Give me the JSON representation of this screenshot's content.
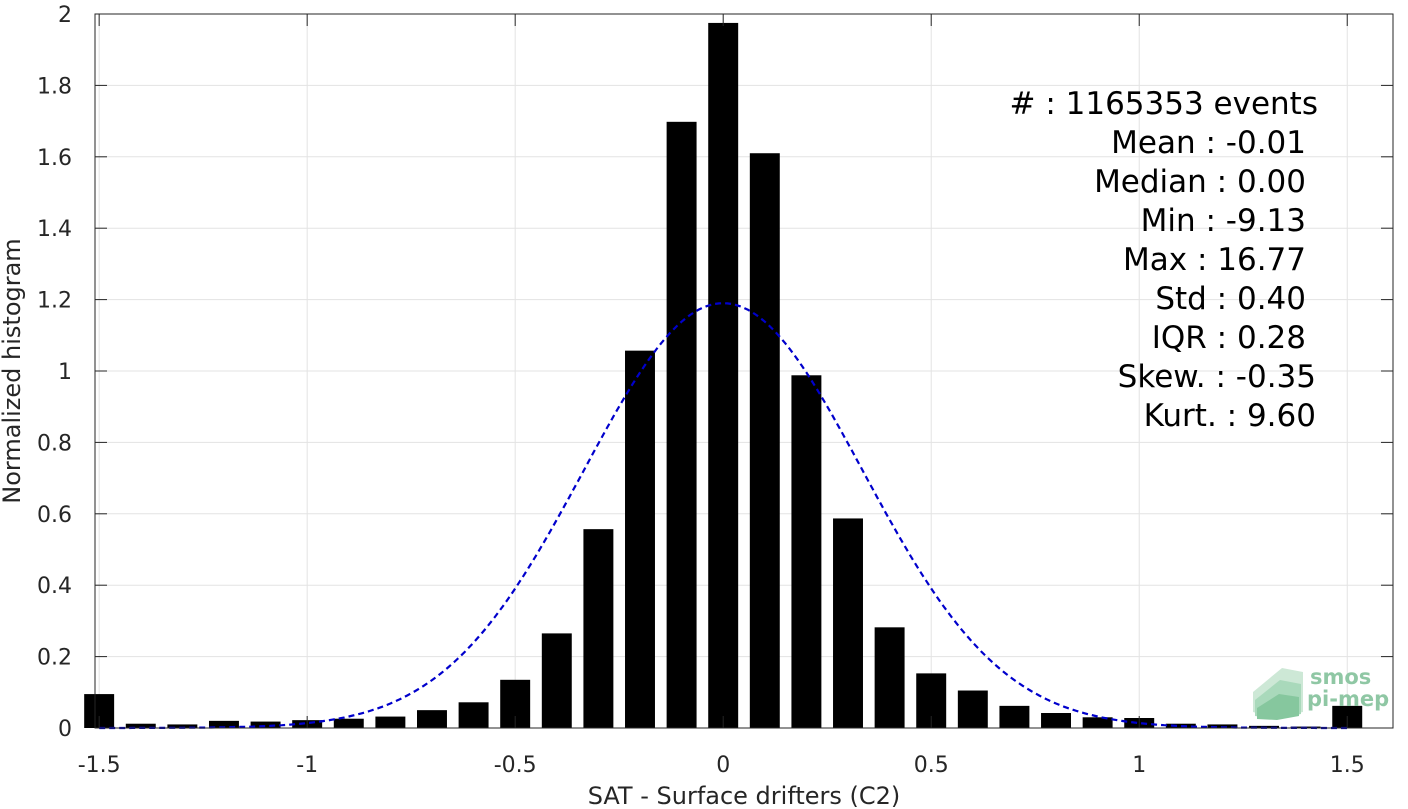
{
  "chart_data": {
    "type": "bar",
    "xlabel": "SAT - Surface drifters (C2)",
    "ylabel": "Normalized histogram",
    "xlim": [
      -1.51,
      1.61
    ],
    "ylim": [
      0,
      2
    ],
    "xticks": [
      -1.5,
      -1,
      -0.5,
      0,
      0.5,
      1,
      1.5
    ],
    "xtick_labels": [
      "-1.5",
      "-1",
      "-0.5",
      "0",
      "0.5",
      "1",
      "1.5"
    ],
    "yticks": [
      0,
      0.2,
      0.4,
      0.6,
      0.8,
      1,
      1.2,
      1.4,
      1.6,
      1.8,
      2
    ],
    "ytick_labels": [
      "0",
      "0.2",
      "0.4",
      "0.6",
      "0.8",
      "1",
      "1.2",
      "1.4",
      "1.6",
      "1.8",
      "2"
    ],
    "grid": true,
    "bar_color": "#000000",
    "bar_width": 0.072,
    "x": [
      -1.5,
      -1.4,
      -1.3,
      -1.2,
      -1.1,
      -1.0,
      -0.9,
      -0.8,
      -0.7,
      -0.6,
      -0.5,
      -0.4,
      -0.3,
      -0.2,
      -0.1,
      0.0,
      0.1,
      0.2,
      0.3,
      0.4,
      0.5,
      0.6,
      0.7,
      0.8,
      0.9,
      1.0,
      1.1,
      1.2,
      1.3,
      1.4,
      1.5
    ],
    "values": [
      0.095,
      0.012,
      0.01,
      0.02,
      0.018,
      0.022,
      0.026,
      0.032,
      0.05,
      0.072,
      0.135,
      0.265,
      0.557,
      1.057,
      1.698,
      1.975,
      1.61,
      0.988,
      0.587,
      0.282,
      0.153,
      0.105,
      0.062,
      0.042,
      0.03,
      0.028,
      0.012,
      0.01,
      0.006,
      0.004,
      0.062
    ],
    "normal_fit": {
      "mean": 0.0,
      "std": 0.335,
      "peak": 1.19,
      "color": "#0000cc",
      "style": "dashed"
    },
    "annotations": [
      "#  : 1165353 events",
      "Mean : -0.01",
      "Median : 0.00",
      "Min : -9.13",
      "Max : 16.77",
      "Std : 0.40",
      "IQR : 0.28",
      "Skew. : -0.35",
      "Kurt. : 9.60"
    ]
  },
  "logo": {
    "line1": "smos",
    "line2": "pi-mep",
    "color": "#8fc7a4"
  }
}
